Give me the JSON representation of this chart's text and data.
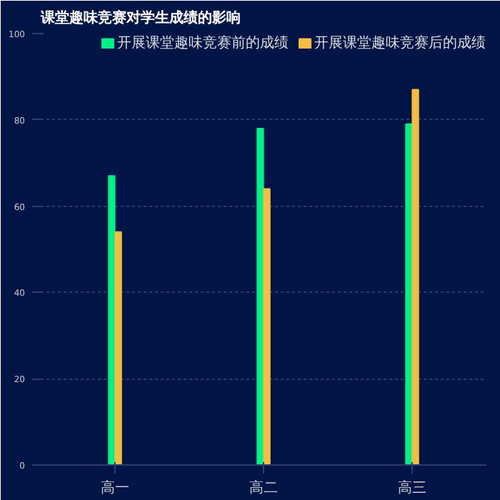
{
  "chart_data": {
    "type": "bar",
    "title": "课堂趣味竞赛对学生成绩的影响",
    "categories": [
      "高一",
      "高二",
      "高三"
    ],
    "series": [
      {
        "name": "开展课堂趣味竞赛前的成绩",
        "color": "#00f08c",
        "values": [
          67,
          78,
          79
        ]
      },
      {
        "name": "开展课堂趣味竞赛后的成绩",
        "color": "#f5be41",
        "values": [
          54,
          64,
          87
        ]
      }
    ],
    "ylim": [
      0,
      100
    ],
    "yticks": [
      0,
      20,
      40,
      60,
      80,
      100
    ],
    "grid": "y",
    "legend": "top right"
  }
}
